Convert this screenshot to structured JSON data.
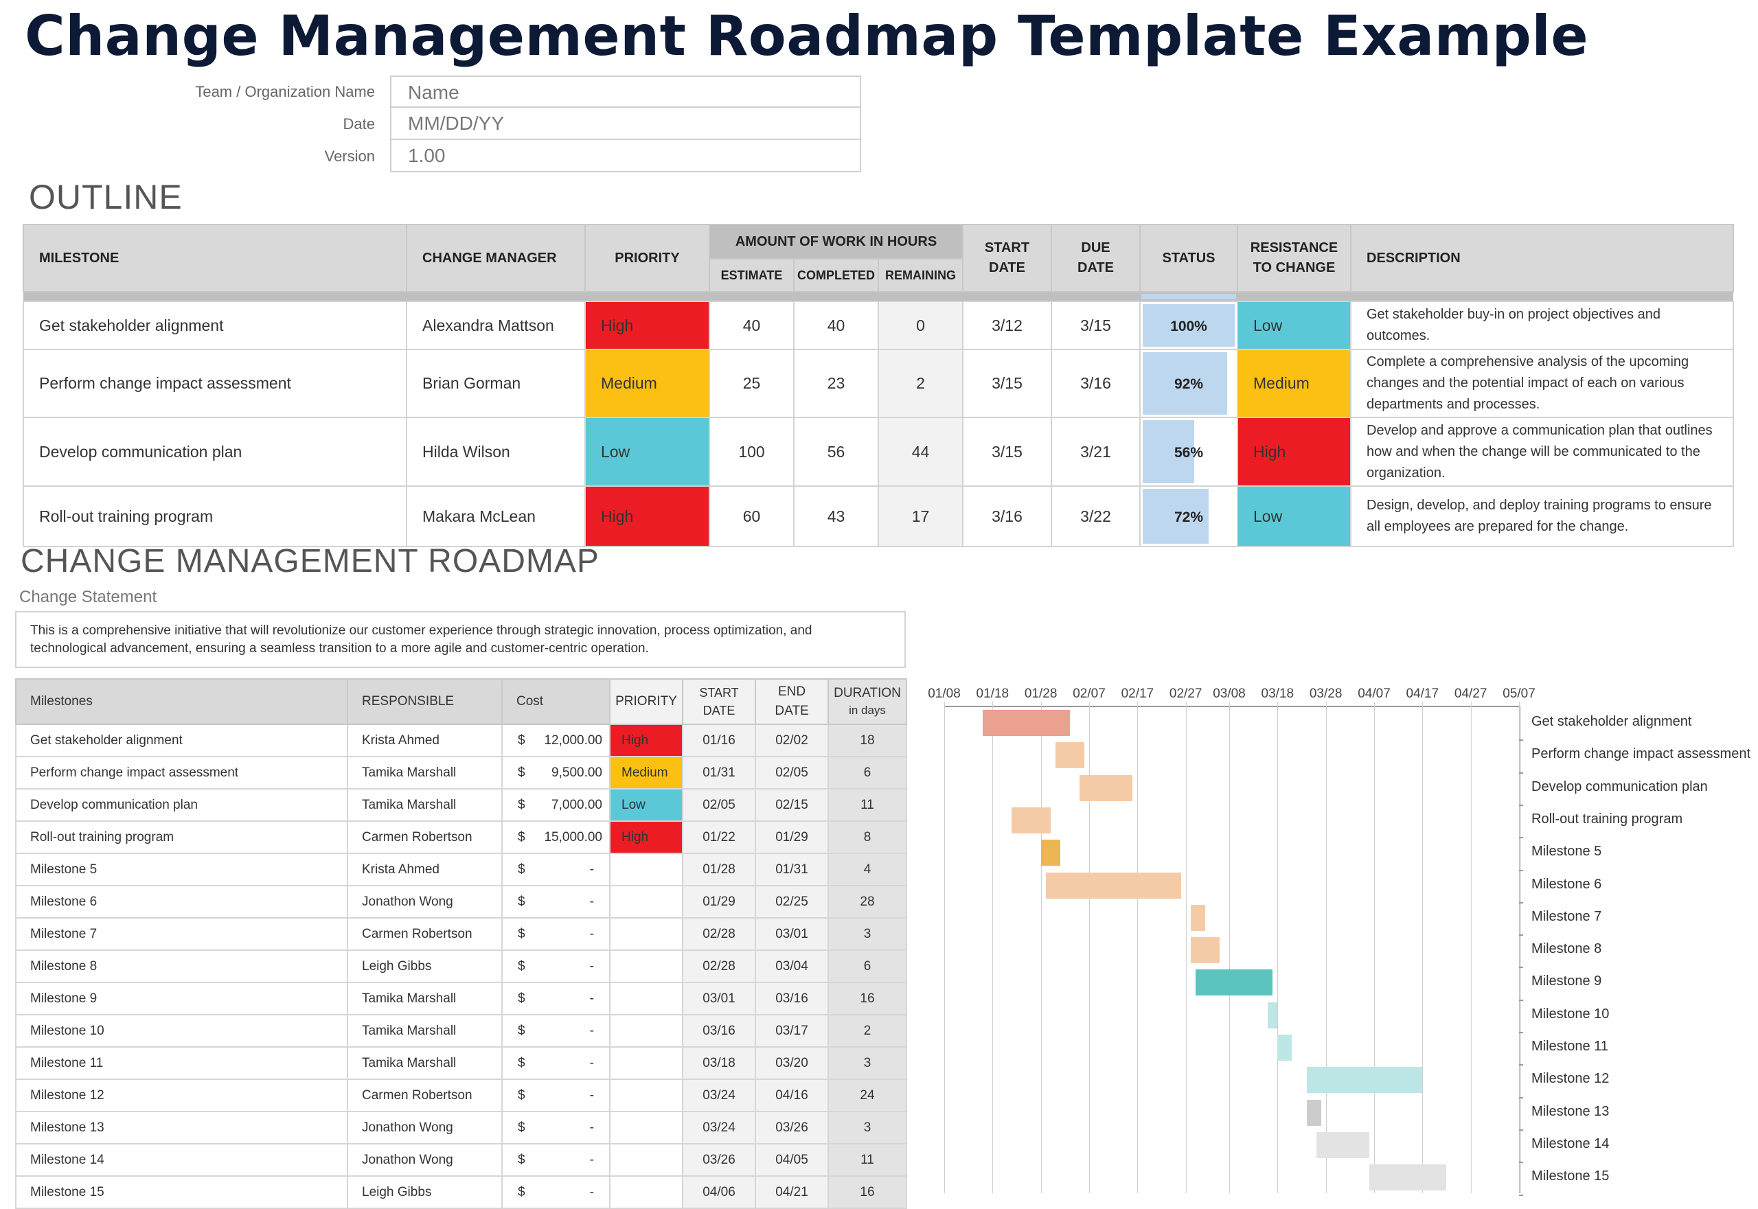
{
  "title": "Change Management Roadmap Template Example",
  "meta": {
    "team_label": "Team / Organization Name",
    "team_value": "Name",
    "date_label": "Date",
    "date_value": "MM/DD/YY",
    "version_label": "Version",
    "version_value": "1.00"
  },
  "outline": {
    "heading": "OUTLINE",
    "headers": {
      "milestone": "MILESTONE",
      "change_manager": "CHANGE MANAGER",
      "priority": "PRIORITY",
      "work_group": "AMOUNT OF WORK IN HOURS",
      "estimate": "ESTIMATE",
      "completed": "COMPLETED",
      "remaining": "REMAINING",
      "start_date": "START DATE",
      "due_date": "DUE DATE",
      "status": "STATUS",
      "resistance": "RESISTANCE TO CHANGE",
      "description": "DESCRIPTION"
    },
    "rows": [
      {
        "milestone": "Get stakeholder alignment",
        "manager": "Alexandra Mattson",
        "priority": "High",
        "priority_color": "#ec1c24",
        "estimate": "40",
        "completed": "40",
        "remaining": "0",
        "start": "3/12",
        "due": "3/15",
        "status": "100%",
        "status_pct": 100,
        "resistance": "Low",
        "resistance_color": "#5bc8d8",
        "description": "Get stakeholder buy-in on project objectives and outcomes."
      },
      {
        "milestone": "Perform change impact assessment",
        "manager": "Brian Gorman",
        "priority": "Medium",
        "priority_color": "#fbc012",
        "estimate": "25",
        "completed": "23",
        "remaining": "2",
        "start": "3/15",
        "due": "3/16",
        "status": "92%",
        "status_pct": 92,
        "resistance": "Medium",
        "resistance_color": "#fbc012",
        "description": "Complete a comprehensive analysis of the upcoming changes and the potential impact of each on various departments and processes."
      },
      {
        "milestone": "Develop communication plan",
        "manager": "Hilda Wilson",
        "priority": "Low",
        "priority_color": "#5bc8d8",
        "estimate": "100",
        "completed": "56",
        "remaining": "44",
        "start": "3/15",
        "due": "3/21",
        "status": "56%",
        "status_pct": 56,
        "resistance": "High",
        "resistance_color": "#ec1c24",
        "description": "Develop and approve a communication plan that outlines how and when the change will be communicated to the organization."
      },
      {
        "milestone": "Roll-out training program",
        "manager": "Makara McLean",
        "priority": "High",
        "priority_color": "#ec1c24",
        "estimate": "60",
        "completed": "43",
        "remaining": "17",
        "start": "3/16",
        "due": "3/22",
        "status": "72%",
        "status_pct": 72,
        "resistance": "Low",
        "resistance_color": "#5bc8d8",
        "description": "Design, develop, and deploy training programs to ensure all employees are prepared for the change."
      }
    ]
  },
  "roadmap": {
    "heading": "CHANGE MANAGEMENT ROADMAP",
    "statement_label": "Change Statement",
    "statement": "This is a comprehensive initiative that will revolutionize our customer experience through strategic innovation, process optimization, and technological advancement, ensuring a seamless transition to a more agile and customer-centric operation.",
    "headers": {
      "milestones": "Milestones",
      "responsible": "RESPONSIBLE",
      "cost": "Cost",
      "priority": "PRIORITY",
      "start_date": "START DATE",
      "end_date": "END DATE",
      "duration": "DURATION",
      "duration_sub": "in days"
    },
    "rows": [
      {
        "name": "Get stakeholder alignment",
        "responsible": "Krista Ahmed",
        "currency": "$",
        "cost": "12,000.00",
        "priority": "High",
        "priority_color": "#ec1c24",
        "start": "01/16",
        "end": "02/02",
        "duration": "18"
      },
      {
        "name": "Perform change impact assessment",
        "responsible": "Tamika Marshall",
        "currency": "$",
        "cost": "9,500.00",
        "priority": "Medium",
        "priority_color": "#fbc012",
        "start": "01/31",
        "end": "02/05",
        "duration": "6"
      },
      {
        "name": "Develop communication plan",
        "responsible": "Tamika Marshall",
        "currency": "$",
        "cost": "7,000.00",
        "priority": "Low",
        "priority_color": "#5bc8d8",
        "start": "02/05",
        "end": "02/15",
        "duration": "11"
      },
      {
        "name": "Roll-out training program",
        "responsible": "Carmen Robertson",
        "currency": "$",
        "cost": "15,000.00",
        "priority": "High",
        "priority_color": "#ec1c24",
        "start": "01/22",
        "end": "01/29",
        "duration": "8"
      },
      {
        "name": "Milestone 5",
        "responsible": "Krista Ahmed",
        "currency": "$",
        "cost": "-",
        "priority": "",
        "priority_color": "",
        "start": "01/28",
        "end": "01/31",
        "duration": "4"
      },
      {
        "name": "Milestone 6",
        "responsible": "Jonathon Wong",
        "currency": "$",
        "cost": "-",
        "priority": "",
        "priority_color": "",
        "start": "01/29",
        "end": "02/25",
        "duration": "28"
      },
      {
        "name": "Milestone 7",
        "responsible": "Carmen Robertson",
        "currency": "$",
        "cost": "-",
        "priority": "",
        "priority_color": "",
        "start": "02/28",
        "end": "03/01",
        "duration": "3"
      },
      {
        "name": "Milestone 8",
        "responsible": "Leigh Gibbs",
        "currency": "$",
        "cost": "-",
        "priority": "",
        "priority_color": "",
        "start": "02/28",
        "end": "03/04",
        "duration": "6"
      },
      {
        "name": "Milestone 9",
        "responsible": "Tamika Marshall",
        "currency": "$",
        "cost": "-",
        "priority": "",
        "priority_color": "",
        "start": "03/01",
        "end": "03/16",
        "duration": "16"
      },
      {
        "name": "Milestone 10",
        "responsible": "Tamika Marshall",
        "currency": "$",
        "cost": "-",
        "priority": "",
        "priority_color": "",
        "start": "03/16",
        "end": "03/17",
        "duration": "2"
      },
      {
        "name": "Milestone 11",
        "responsible": "Tamika Marshall",
        "currency": "$",
        "cost": "-",
        "priority": "",
        "priority_color": "",
        "start": "03/18",
        "end": "03/20",
        "duration": "3"
      },
      {
        "name": "Milestone 12",
        "responsible": "Carmen Robertson",
        "currency": "$",
        "cost": "-",
        "priority": "",
        "priority_color": "",
        "start": "03/24",
        "end": "04/16",
        "duration": "24"
      },
      {
        "name": "Milestone 13",
        "responsible": "Jonathon Wong",
        "currency": "$",
        "cost": "-",
        "priority": "",
        "priority_color": "",
        "start": "03/24",
        "end": "03/26",
        "duration": "3"
      },
      {
        "name": "Milestone 14",
        "responsible": "Jonathon Wong",
        "currency": "$",
        "cost": "-",
        "priority": "",
        "priority_color": "",
        "start": "03/26",
        "end": "04/05",
        "duration": "11"
      },
      {
        "name": "Milestone 15",
        "responsible": "Leigh Gibbs",
        "currency": "$",
        "cost": "-",
        "priority": "",
        "priority_color": "",
        "start": "04/06",
        "end": "04/21",
        "duration": "16"
      }
    ]
  },
  "chart_data": {
    "type": "bar",
    "subtype": "gantt",
    "title": "",
    "x_ticks": [
      "01/08",
      "01/18",
      "01/28",
      "02/07",
      "02/17",
      "02/27",
      "03/08",
      "03/18",
      "03/28",
      "04/07",
      "04/17",
      "04/27",
      "05/07"
    ],
    "x_range": [
      "01/08",
      "05/07"
    ],
    "grid": true,
    "legend": "none",
    "categories": [
      "Get stakeholder alignment",
      "Perform change impact assessment",
      "Develop communication plan",
      "Roll-out training program",
      "Milestone 5",
      "Milestone 6",
      "Milestone 7",
      "Milestone 8",
      "Milestone 9",
      "Milestone 10",
      "Milestone 11",
      "Milestone 12",
      "Milestone 13",
      "Milestone 14",
      "Milestone 15"
    ],
    "series": [
      {
        "name": "start",
        "values": [
          "01/16",
          "01/31",
          "02/05",
          "01/22",
          "01/28",
          "01/29",
          "02/28",
          "02/28",
          "03/01",
          "03/16",
          "03/18",
          "03/24",
          "03/24",
          "03/26",
          "04/06"
        ]
      },
      {
        "name": "duration_days",
        "values": [
          18,
          6,
          11,
          8,
          4,
          28,
          3,
          6,
          16,
          2,
          3,
          24,
          3,
          11,
          16
        ]
      }
    ],
    "bar_colors": [
      "#eaa190",
      "#f5cba7",
      "#f5cba7",
      "#f5cba7",
      "#ecb653",
      "#f5cba7",
      "#f5cba7",
      "#f5cba7",
      "#5bc4bf",
      "#bde6e6",
      "#bde6e6",
      "#bde6e6",
      "#cccccc",
      "#e3e3e3",
      "#e3e3e3"
    ]
  }
}
